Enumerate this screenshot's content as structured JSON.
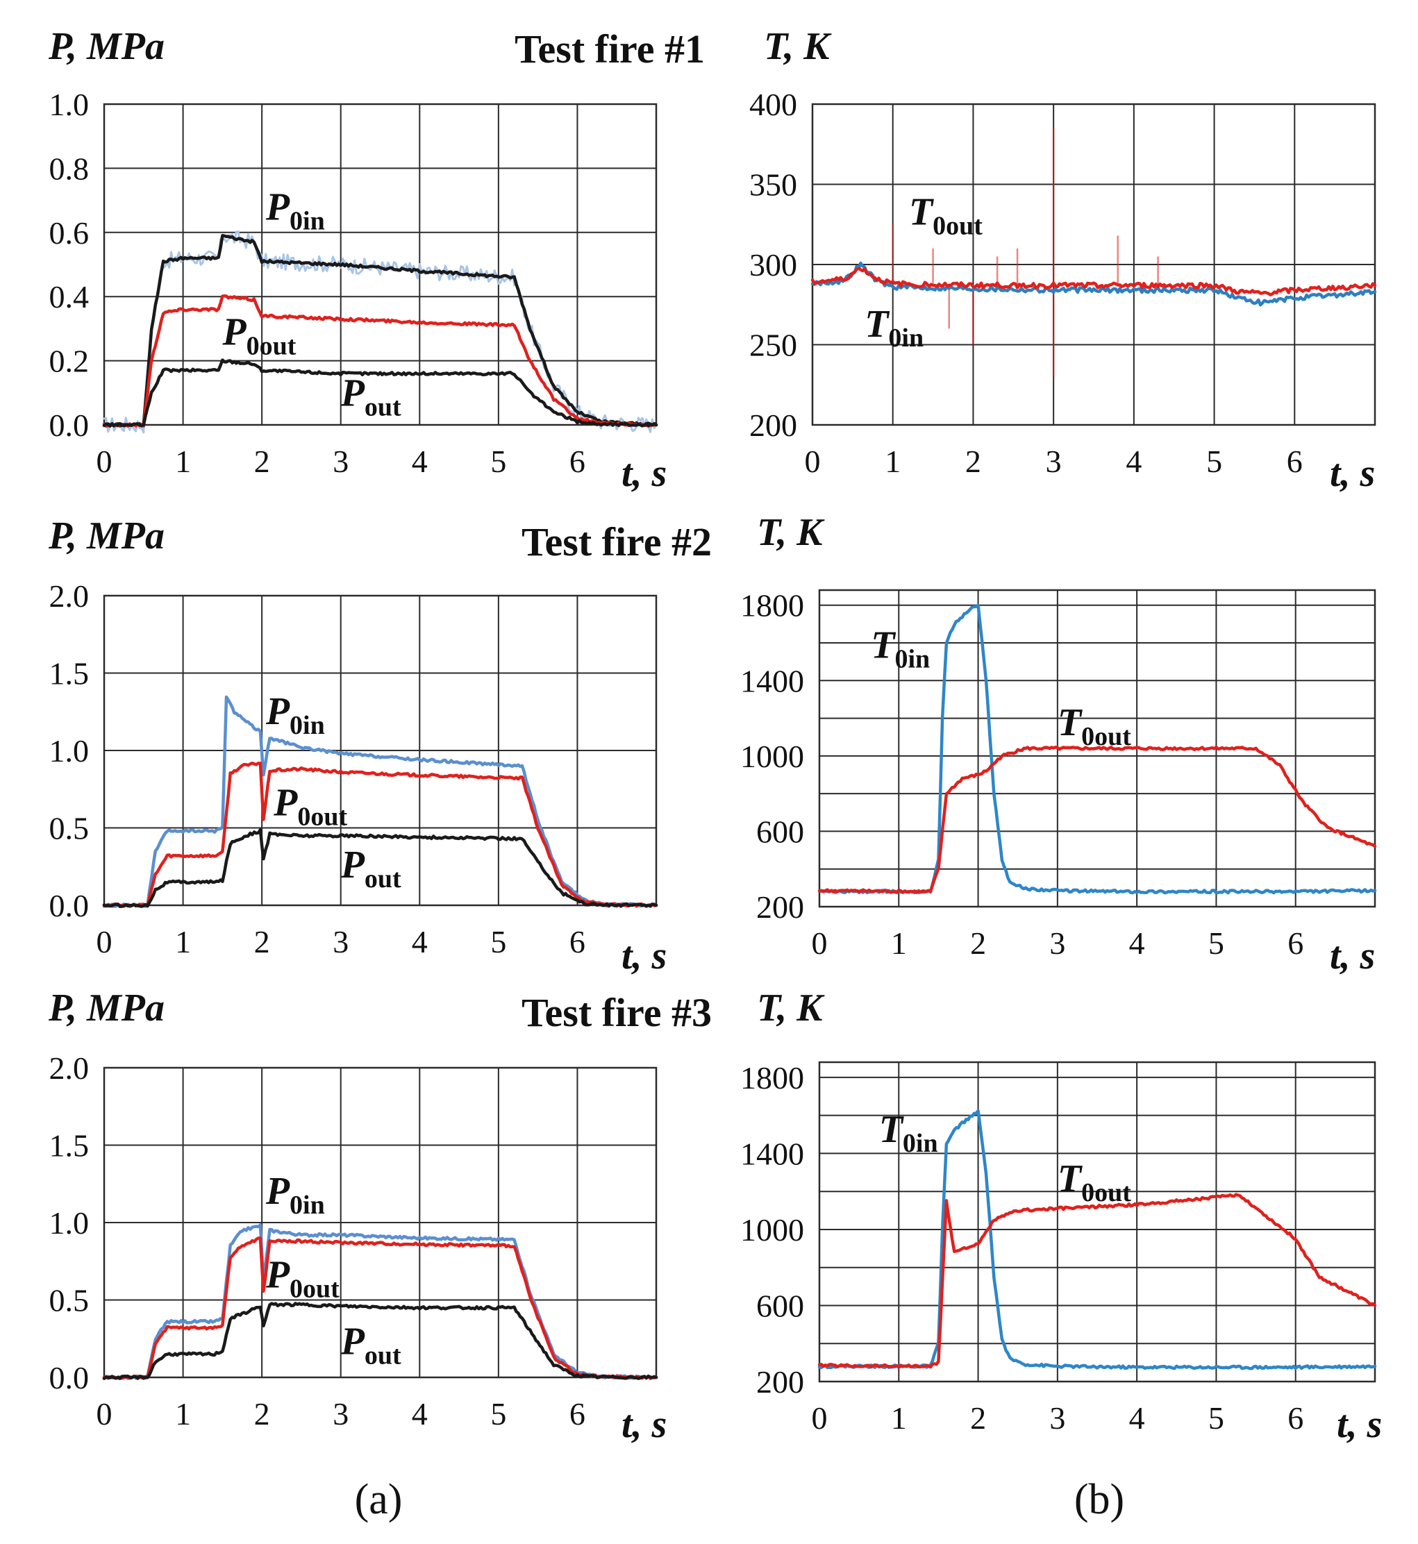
{
  "chart_data": [
    {
      "id": "p1",
      "type": "line",
      "title": "Test fire #1",
      "ylabel": "P, MPa",
      "xlabel": "t, s",
      "xlim": [
        0,
        7
      ],
      "ylim": [
        0,
        1.0
      ],
      "xticks": [
        0,
        1,
        2,
        3,
        4,
        5,
        6
      ],
      "xticklabels": [
        "0",
        "1",
        "2",
        "3",
        "4",
        "5",
        "6"
      ],
      "yticks": [
        0,
        0.2,
        0.4,
        0.6,
        0.8,
        1.0
      ],
      "yticklabels": [
        "0.0",
        "0.2",
        "0.4",
        "0.6",
        "0.8",
        "1.0"
      ],
      "grid": true,
      "series": [
        {
          "name": "P0in",
          "color": "#1a1a1a",
          "noise_color": "#a9c4e6",
          "x": [
            0,
            0.5,
            0.6,
            0.75,
            1.0,
            1.45,
            1.5,
            1.9,
            2.0,
            3,
            4,
            5.2,
            5.4,
            5.7,
            6.0,
            6.3,
            7
          ],
          "y": [
            0,
            0,
            0.3,
            0.51,
            0.52,
            0.52,
            0.59,
            0.57,
            0.51,
            0.5,
            0.48,
            0.46,
            0.3,
            0.12,
            0.04,
            0.01,
            0
          ]
        },
        {
          "name": "P0out",
          "color": "#e0211d",
          "x": [
            0,
            0.5,
            0.6,
            0.75,
            1.0,
            1.45,
            1.5,
            1.9,
            2.0,
            3,
            4,
            5.2,
            5.4,
            5.7,
            6.0,
            6.3,
            7
          ],
          "y": [
            0,
            0,
            0.2,
            0.35,
            0.36,
            0.36,
            0.4,
            0.39,
            0.34,
            0.33,
            0.32,
            0.31,
            0.2,
            0.08,
            0.02,
            0.005,
            0
          ]
        },
        {
          "name": "Pout",
          "color": "#1a1a1a",
          "x": [
            0,
            0.5,
            0.6,
            0.75,
            1.0,
            1.45,
            1.5,
            1.9,
            2.0,
            3,
            4,
            5.2,
            5.4,
            5.7,
            6.0,
            6.3,
            7
          ],
          "y": [
            0,
            0,
            0.1,
            0.17,
            0.17,
            0.17,
            0.2,
            0.19,
            0.17,
            0.16,
            0.16,
            0.16,
            0.1,
            0.04,
            0.01,
            0.002,
            0
          ]
        }
      ],
      "annotations": [
        {
          "main": "P",
          "sub": "0in",
          "x": 2.05,
          "y": 0.64
        },
        {
          "main": "P",
          "sub": "0out",
          "x": 1.5,
          "y": 0.25
        },
        {
          "main": "P",
          "sub": "out",
          "x": 3.0,
          "y": 0.06
        }
      ]
    },
    {
      "id": "t1",
      "type": "line",
      "ylabel": "T, K",
      "xlabel": "t, s",
      "xlim": [
        0,
        7
      ],
      "ylim": [
        200,
        400
      ],
      "xticks": [
        0,
        1,
        2,
        3,
        4,
        5,
        6
      ],
      "xticklabels": [
        "0",
        "1",
        "2",
        "3",
        "4",
        "5",
        "6"
      ],
      "yticks": [
        200,
        250,
        300,
        350,
        400
      ],
      "yticklabels": [
        "200",
        "250",
        "300",
        "350",
        "400"
      ],
      "grid": true,
      "series": [
        {
          "name": "T0in",
          "color": "#2e7fc0",
          "x": [
            0,
            0.4,
            0.6,
            0.8,
            1.0,
            2,
            3,
            4,
            5.0,
            5.3,
            5.6,
            6,
            7
          ],
          "y": [
            288,
            290,
            300,
            290,
            286,
            285,
            284,
            284,
            284,
            279,
            276,
            279,
            283
          ]
        },
        {
          "name": "T0out",
          "color": "#e0211d",
          "x": [
            0,
            0.4,
            0.6,
            0.8,
            1.0,
            2,
            3,
            4,
            5.0,
            5.3,
            5.6,
            6,
            7
          ],
          "y": [
            289,
            291,
            298,
            291,
            288,
            287,
            287,
            287,
            287,
            283,
            282,
            284,
            287
          ]
        }
      ],
      "spikes": [
        {
          "x": 1.0,
          "y1": 288,
          "y2": 325
        },
        {
          "x": 1.5,
          "y1": 288,
          "y2": 310
        },
        {
          "x": 1.7,
          "y1": 287,
          "y2": 260
        },
        {
          "x": 2.0,
          "y1": 287,
          "y2": 250
        },
        {
          "x": 2.3,
          "y1": 287,
          "y2": 305
        },
        {
          "x": 2.55,
          "y1": 287,
          "y2": 310
        },
        {
          "x": 3.0,
          "y1": 230,
          "y2": 385
        },
        {
          "x": 3.8,
          "y1": 287,
          "y2": 318
        },
        {
          "x": 4.3,
          "y1": 287,
          "y2": 305
        }
      ],
      "annotations": [
        {
          "main": "T",
          "sub": "0out",
          "x": 1.2,
          "y": 325
        },
        {
          "main": "T",
          "sub": "0in",
          "x": 0.65,
          "y": 255
        }
      ]
    },
    {
      "id": "p2",
      "type": "line",
      "title": "Test fire #2",
      "ylabel": "P, MPa",
      "xlabel": "t, s",
      "xlim": [
        0,
        7
      ],
      "ylim": [
        0,
        2.0
      ],
      "xticks": [
        0,
        1,
        2,
        3,
        4,
        5,
        6
      ],
      "xticklabels": [
        "0",
        "1",
        "2",
        "3",
        "4",
        "5",
        "6"
      ],
      "yticks": [
        0,
        0.5,
        1.0,
        1.5,
        2.0
      ],
      "yticklabels": [
        "0.0",
        "0.5",
        "1.0",
        "1.5",
        "2.0"
      ],
      "grid": true,
      "series": [
        {
          "name": "P0in",
          "color": "#5b8fd0",
          "x": [
            0,
            0.55,
            0.65,
            0.8,
            1.4,
            1.5,
            1.55,
            1.65,
            1.9,
            1.98,
            2.02,
            2.1,
            2.5,
            3,
            4,
            5.3,
            5.5,
            5.8,
            6.1,
            6.4,
            7
          ],
          "y": [
            0,
            0,
            0.35,
            0.48,
            0.48,
            0.5,
            1.35,
            1.25,
            1.15,
            1.12,
            0.85,
            1.08,
            1.02,
            0.98,
            0.94,
            0.9,
            0.55,
            0.15,
            0.03,
            0.005,
            0
          ]
        },
        {
          "name": "P0out",
          "color": "#e0211d",
          "x": [
            0,
            0.55,
            0.65,
            0.8,
            1.4,
            1.5,
            1.6,
            1.75,
            1.98,
            2.02,
            2.1,
            2.5,
            3,
            4,
            5.3,
            5.5,
            5.8,
            6.1,
            6.4,
            7
          ],
          "y": [
            0,
            0,
            0.2,
            0.32,
            0.32,
            0.34,
            0.85,
            0.9,
            0.92,
            0.55,
            0.87,
            0.88,
            0.86,
            0.84,
            0.82,
            0.5,
            0.13,
            0.02,
            0.003,
            0
          ]
        },
        {
          "name": "Pout",
          "color": "#1a1a1a",
          "x": [
            0,
            0.55,
            0.65,
            0.8,
            1.4,
            1.5,
            1.6,
            1.8,
            1.98,
            2.02,
            2.1,
            2.5,
            3,
            4,
            5.3,
            5.5,
            5.8,
            6.1,
            6.4,
            7
          ],
          "y": [
            0,
            0,
            0.1,
            0.15,
            0.15,
            0.16,
            0.4,
            0.45,
            0.48,
            0.3,
            0.46,
            0.45,
            0.45,
            0.44,
            0.43,
            0.28,
            0.08,
            0.01,
            0.002,
            0
          ]
        }
      ],
      "annotations": [
        {
          "main": "P",
          "sub": "0in",
          "x": 2.05,
          "y": 1.17
        },
        {
          "main": "P",
          "sub": "0out",
          "x": 2.15,
          "y": 0.58
        },
        {
          "main": "P",
          "sub": "out",
          "x": 3.0,
          "y": 0.18
        }
      ]
    },
    {
      "id": "t2",
      "type": "line",
      "ylabel": "T, K",
      "xlabel": "t, s",
      "xlim": [
        0,
        7
      ],
      "ylim": [
        200,
        1880
      ],
      "xticks": [
        0,
        1,
        2,
        3,
        4,
        5,
        6
      ],
      "xticklabels": [
        "0",
        "1",
        "2",
        "3",
        "4",
        "5",
        "6"
      ],
      "yticks": [
        200,
        600,
        1000,
        1400,
        1800
      ],
      "yticklabels": [
        "200",
        "600",
        "1000",
        "1400",
        "1800"
      ],
      "grid": true,
      "series": [
        {
          "name": "T0in",
          "color": "#2e86c8",
          "x": [
            0,
            1.4,
            1.5,
            1.55,
            1.6,
            1.7,
            1.8,
            1.9,
            2.0,
            2.1,
            2.2,
            2.3,
            2.4,
            2.6,
            3,
            4,
            5,
            6,
            7
          ],
          "y": [
            280,
            280,
            450,
            1200,
            1600,
            1700,
            1740,
            1780,
            1800,
            1400,
            800,
            450,
            330,
            295,
            285,
            280,
            280,
            280,
            285
          ]
        },
        {
          "name": "T0out",
          "color": "#e0211d",
          "x": [
            0,
            1.4,
            1.5,
            1.6,
            1.8,
            2.0,
            2.1,
            2.3,
            2.6,
            3,
            4,
            5,
            5.5,
            5.8,
            6.1,
            6.4,
            7
          ],
          "y": [
            285,
            280,
            400,
            800,
            880,
            900,
            920,
            1000,
            1040,
            1040,
            1040,
            1040,
            1040,
            950,
            750,
            620,
            520
          ]
        }
      ],
      "annotations": [
        {
          "main": "T",
          "sub": "0in",
          "x": 0.65,
          "y": 1520
        },
        {
          "main": "T",
          "sub": "0out",
          "x": 3.0,
          "y": 1110
        }
      ]
    },
    {
      "id": "p3",
      "type": "line",
      "title": "Test fire #3",
      "ylabel": "P, MPa",
      "xlabel": "t, s",
      "xlim": [
        0,
        7
      ],
      "ylim": [
        0,
        2.0
      ],
      "xticks": [
        0,
        1,
        2,
        3,
        4,
        5,
        6
      ],
      "xticklabels": [
        "0",
        "1",
        "2",
        "3",
        "4",
        "5",
        "6"
      ],
      "yticks": [
        0,
        0.5,
        1.0,
        1.5,
        2.0
      ],
      "yticklabels": [
        "0.0",
        "0.5",
        "1.0",
        "1.5",
        "2.0"
      ],
      "grid": true,
      "series": [
        {
          "name": "P0in",
          "color": "#5b8fd0",
          "x": [
            0,
            0.55,
            0.65,
            0.8,
            1.4,
            1.5,
            1.6,
            1.75,
            1.98,
            2.02,
            2.1,
            2.5,
            3,
            4,
            5.2,
            5.4,
            5.7,
            6.0,
            6.3,
            7
          ],
          "y": [
            0,
            0,
            0.25,
            0.36,
            0.36,
            0.38,
            0.85,
            0.95,
            0.98,
            0.62,
            0.95,
            0.92,
            0.92,
            0.9,
            0.89,
            0.55,
            0.15,
            0.03,
            0.005,
            0
          ]
        },
        {
          "name": "P0out",
          "color": "#e0211d",
          "x": [
            0,
            0.55,
            0.65,
            0.8,
            1.4,
            1.5,
            1.6,
            1.75,
            1.98,
            2.02,
            2.1,
            2.5,
            3,
            4,
            5.2,
            5.4,
            5.7,
            6.0,
            6.3,
            7
          ],
          "y": [
            0,
            0,
            0.22,
            0.32,
            0.32,
            0.34,
            0.78,
            0.85,
            0.9,
            0.55,
            0.88,
            0.88,
            0.87,
            0.86,
            0.85,
            0.52,
            0.13,
            0.02,
            0.003,
            0
          ]
        },
        {
          "name": "Pout",
          "color": "#1a1a1a",
          "x": [
            0,
            0.55,
            0.65,
            0.8,
            1.4,
            1.5,
            1.6,
            1.8,
            1.98,
            2.02,
            2.1,
            2.5,
            3,
            4,
            5.2,
            5.4,
            5.7,
            6.0,
            6.3,
            7
          ],
          "y": [
            0,
            0,
            0.1,
            0.15,
            0.15,
            0.17,
            0.38,
            0.42,
            0.46,
            0.33,
            0.47,
            0.47,
            0.46,
            0.45,
            0.45,
            0.3,
            0.08,
            0.01,
            0.002,
            0
          ]
        }
      ],
      "annotations": [
        {
          "main": "P",
          "sub": "0in",
          "x": 2.05,
          "y": 1.12
        },
        {
          "main": "P",
          "sub": "0out",
          "x": 2.05,
          "y": 0.58
        },
        {
          "main": "P",
          "sub": "out",
          "x": 3.0,
          "y": 0.15
        }
      ]
    },
    {
      "id": "t3",
      "type": "line",
      "ylabel": "",
      "xlabel": "t, s",
      "xlim": [
        0,
        7
      ],
      "ylim": [
        200,
        1880
      ],
      "xticks": [
        0,
        1,
        2,
        3,
        4,
        5,
        6
      ],
      "xticklabels": [
        "0",
        "1",
        "2",
        "3",
        "4",
        "5",
        "6"
      ],
      "yticks": [
        200,
        600,
        1000,
        1400,
        1800
      ],
      "yticklabels": [
        "200",
        "600",
        "1000",
        "1400",
        "1800"
      ],
      "grid": true,
      "series": [
        {
          "name": "T0in",
          "color": "#2e86c8",
          "x": [
            0,
            1.4,
            1.5,
            1.55,
            1.6,
            1.7,
            1.8,
            1.9,
            2.0,
            2.1,
            2.2,
            2.3,
            2.4,
            2.6,
            3,
            4,
            5,
            6,
            7
          ],
          "y": [
            280,
            280,
            400,
            1000,
            1450,
            1520,
            1560,
            1590,
            1620,
            1300,
            750,
            420,
            320,
            290,
            280,
            275,
            275,
            275,
            280
          ]
        },
        {
          "name": "T0out",
          "color": "#e0211d",
          "x": [
            0,
            1.4,
            1.5,
            1.6,
            1.7,
            1.8,
            2.0,
            2.2,
            2.5,
            3,
            4,
            5,
            5.3,
            5.6,
            6.0,
            6.3,
            7
          ],
          "y": [
            285,
            280,
            300,
            1150,
            880,
            900,
            920,
            1050,
            1100,
            1110,
            1130,
            1170,
            1180,
            1080,
            950,
            750,
            600
          ]
        }
      ],
      "annotations": [
        {
          "main": "T",
          "sub": "0in",
          "x": 0.75,
          "y": 1460
        },
        {
          "main": "T",
          "sub": "0out",
          "x": 3.0,
          "y": 1200
        }
      ]
    }
  ],
  "captions": {
    "a": "(a)",
    "b": "(b)"
  }
}
